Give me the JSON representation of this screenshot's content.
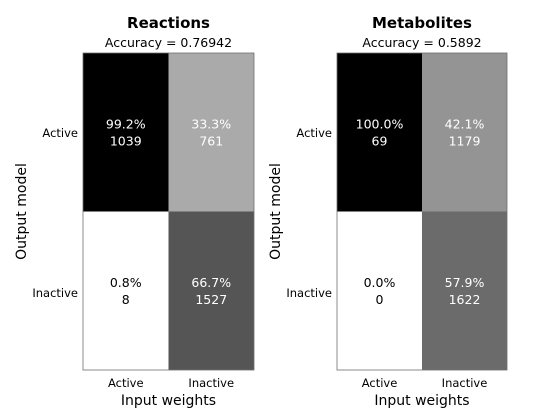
{
  "chart_data": [
    {
      "type": "heatmap",
      "title": "Reactions",
      "subtitle": "Accuracy = 0.76942",
      "xlabel": "Input weights",
      "ylabel": "Output model",
      "x_categories": [
        "Active",
        "Inactive"
      ],
      "y_categories": [
        "Active",
        "Inactive"
      ],
      "cells": [
        {
          "row": 0,
          "col": 0,
          "percent": "99.2%",
          "count": "1039",
          "shade": 0.0
        },
        {
          "row": 0,
          "col": 1,
          "percent": "33.3%",
          "count": "761",
          "shade": 0.667
        },
        {
          "row": 1,
          "col": 0,
          "percent": "0.8%",
          "count": "8",
          "shade": 1.0
        },
        {
          "row": 1,
          "col": 1,
          "percent": "66.7%",
          "count": "1527",
          "shade": 0.333
        }
      ]
    },
    {
      "type": "heatmap",
      "title": "Metabolites",
      "subtitle": "Accuracy = 0.5892",
      "xlabel": "Input weights",
      "ylabel": "Output model",
      "x_categories": [
        "Active",
        "Inactive"
      ],
      "y_categories": [
        "Active",
        "Inactive"
      ],
      "cells": [
        {
          "row": 0,
          "col": 0,
          "percent": "100.0%",
          "count": "69",
          "shade": 0.0
        },
        {
          "row": 0,
          "col": 1,
          "percent": "42.1%",
          "count": "1179",
          "shade": 0.579
        },
        {
          "row": 1,
          "col": 0,
          "percent": "0.0%",
          "count": "0",
          "shade": 1.0
        },
        {
          "row": 1,
          "col": 1,
          "percent": "57.9%",
          "count": "1622",
          "shade": 0.421
        }
      ]
    }
  ]
}
